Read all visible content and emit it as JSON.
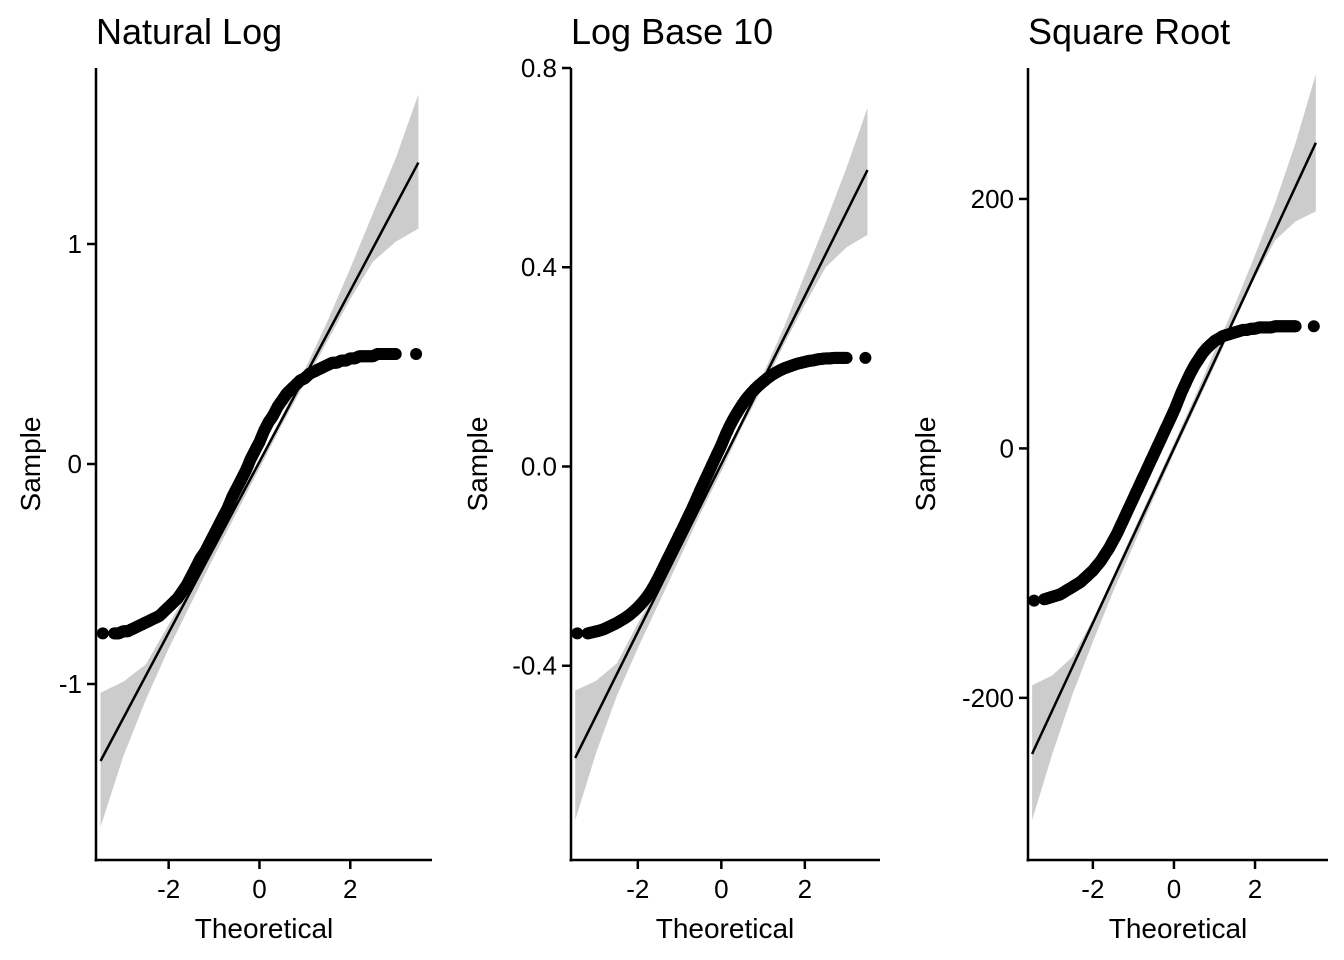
{
  "chart_data": [
    {
      "type": "scatter",
      "subtype": "qq-plot",
      "title": "Natural Log",
      "xlabel": "Theoretical",
      "ylabel": "Sample",
      "xlim": [
        -3.6,
        3.8
      ],
      "ylim": [
        -1.8,
        1.8
      ],
      "x_ticks": [
        -2,
        0,
        2
      ],
      "y_ticks": [
        -1,
        0,
        1
      ],
      "x_tick_labels": [
        "-2",
        "0",
        "2"
      ],
      "y_tick_labels": [
        "-1",
        "0",
        "1"
      ],
      "grid": false,
      "reference_line": {
        "x": [
          -3.5,
          3.5
        ],
        "y": [
          -1.35,
          1.37
        ]
      },
      "confidence_band": {
        "x": [
          -3.5,
          -3.0,
          -2.5,
          -2.0,
          -1.5,
          -1.0,
          -0.5,
          0.0,
          0.5,
          1.0,
          1.5,
          2.0,
          2.5,
          3.0,
          3.5
        ],
        "lower": [
          -1.65,
          -1.33,
          -1.07,
          -0.84,
          -0.63,
          -0.42,
          -0.22,
          -0.02,
          0.18,
          0.37,
          0.56,
          0.75,
          0.92,
          1.01,
          1.07
        ],
        "upper": [
          -1.04,
          -0.99,
          -0.91,
          -0.73,
          -0.55,
          -0.36,
          -0.16,
          0.02,
          0.22,
          0.43,
          0.65,
          0.89,
          1.14,
          1.39,
          1.68
        ]
      },
      "series": [
        {
          "x": [
            -3.45,
            -3.2,
            -3.1,
            -3.0,
            -2.9,
            -2.8,
            -2.7,
            -2.6,
            -2.5,
            -2.4,
            -2.3,
            -2.2,
            -2.1,
            -2.0,
            -1.9,
            -1.8,
            -1.7,
            -1.6,
            -1.5,
            -1.4,
            -1.3,
            -1.2,
            -1.1,
            -1.0,
            -0.9,
            -0.8,
            -0.7,
            -0.6,
            -0.5,
            -0.4,
            -0.3,
            -0.2,
            -0.1,
            0.0,
            0.1,
            0.2,
            0.3,
            0.4,
            0.5,
            0.6,
            0.7,
            0.8,
            0.9,
            1.0,
            1.1,
            1.2,
            1.3,
            1.4,
            1.5,
            1.6,
            1.7,
            1.8,
            1.9,
            2.0,
            2.1,
            2.2,
            2.3,
            2.4,
            2.5,
            2.6,
            2.7,
            2.8,
            2.9,
            3.0,
            3.45
          ],
          "y": [
            -0.77,
            -0.77,
            -0.77,
            -0.76,
            -0.76,
            -0.75,
            -0.74,
            -0.73,
            -0.72,
            -0.71,
            -0.7,
            -0.69,
            -0.67,
            -0.65,
            -0.63,
            -0.61,
            -0.58,
            -0.55,
            -0.51,
            -0.47,
            -0.43,
            -0.4,
            -0.36,
            -0.32,
            -0.28,
            -0.24,
            -0.2,
            -0.15,
            -0.11,
            -0.07,
            -0.03,
            0.02,
            0.06,
            0.1,
            0.15,
            0.19,
            0.22,
            0.26,
            0.29,
            0.32,
            0.34,
            0.36,
            0.38,
            0.39,
            0.41,
            0.42,
            0.43,
            0.44,
            0.45,
            0.46,
            0.46,
            0.47,
            0.47,
            0.48,
            0.48,
            0.49,
            0.49,
            0.49,
            0.49,
            0.5,
            0.5,
            0.5,
            0.5,
            0.5,
            0.5
          ]
        }
      ]
    },
    {
      "type": "scatter",
      "subtype": "qq-plot",
      "title": "Log Base 10",
      "xlabel": "Theoretical",
      "ylabel": "Sample",
      "xlim": [
        -3.6,
        3.8
      ],
      "ylim": [
        -0.79,
        0.8
      ],
      "x_ticks": [
        -2,
        0,
        2
      ],
      "y_ticks": [
        -0.4,
        0.0,
        0.4,
        0.8
      ],
      "x_tick_labels": [
        "-2",
        "0",
        "2"
      ],
      "y_tick_labels": [
        "-0.4",
        "0.0",
        "0.4",
        "0.8"
      ],
      "grid": false,
      "reference_line": {
        "x": [
          -3.5,
          3.5
        ],
        "y": [
          -0.585,
          0.595
        ]
      },
      "confidence_band": {
        "x": [
          -3.5,
          -3.0,
          -2.5,
          -2.0,
          -1.5,
          -1.0,
          -0.5,
          0.0,
          0.5,
          1.0,
          1.5,
          2.0,
          2.5,
          3.0,
          3.5
        ],
        "lower": [
          -0.71,
          -0.575,
          -0.46,
          -0.365,
          -0.275,
          -0.185,
          -0.095,
          -0.01,
          0.08,
          0.16,
          0.245,
          0.325,
          0.4,
          0.44,
          0.465
        ],
        "upper": [
          -0.45,
          -0.43,
          -0.395,
          -0.315,
          -0.24,
          -0.155,
          -0.07,
          0.01,
          0.095,
          0.185,
          0.28,
          0.385,
          0.49,
          0.6,
          0.72
        ]
      },
      "series": [
        {
          "x": [
            -3.45,
            -3.2,
            -3.1,
            -3.0,
            -2.9,
            -2.8,
            -2.7,
            -2.6,
            -2.5,
            -2.4,
            -2.3,
            -2.2,
            -2.1,
            -2.0,
            -1.9,
            -1.8,
            -1.7,
            -1.6,
            -1.5,
            -1.4,
            -1.3,
            -1.2,
            -1.1,
            -1.0,
            -0.9,
            -0.8,
            -0.7,
            -0.6,
            -0.5,
            -0.4,
            -0.3,
            -0.2,
            -0.1,
            0.0,
            0.1,
            0.2,
            0.3,
            0.4,
            0.5,
            0.6,
            0.7,
            0.8,
            0.9,
            1.0,
            1.1,
            1.2,
            1.3,
            1.4,
            1.5,
            1.6,
            1.7,
            1.8,
            1.9,
            2.0,
            2.1,
            2.2,
            2.3,
            2.4,
            2.5,
            2.6,
            2.7,
            2.8,
            2.9,
            3.0,
            3.45
          ],
          "y": [
            -0.335,
            -0.335,
            -0.333,
            -0.331,
            -0.329,
            -0.326,
            -0.322,
            -0.318,
            -0.314,
            -0.309,
            -0.304,
            -0.298,
            -0.291,
            -0.283,
            -0.274,
            -0.264,
            -0.252,
            -0.238,
            -0.222,
            -0.205,
            -0.188,
            -0.171,
            -0.154,
            -0.137,
            -0.12,
            -0.102,
            -0.085,
            -0.066,
            -0.047,
            -0.029,
            -0.011,
            0.007,
            0.025,
            0.043,
            0.063,
            0.081,
            0.097,
            0.111,
            0.124,
            0.136,
            0.146,
            0.155,
            0.163,
            0.17,
            0.177,
            0.183,
            0.188,
            0.193,
            0.197,
            0.2,
            0.203,
            0.206,
            0.208,
            0.21,
            0.212,
            0.213,
            0.215,
            0.216,
            0.217,
            0.217,
            0.218,
            0.218,
            0.218,
            0.218,
            0.218
          ]
        }
      ]
    },
    {
      "type": "scatter",
      "subtype": "qq-plot",
      "title": "Square Root",
      "xlabel": "Theoretical",
      "ylabel": "Sample",
      "xlim": [
        -3.6,
        3.8
      ],
      "ylim": [
        -330,
        305
      ],
      "x_ticks": [
        -2,
        0,
        2
      ],
      "y_ticks": [
        -200,
        0,
        200
      ],
      "x_tick_labels": [
        "-2",
        "0",
        "2"
      ],
      "y_tick_labels": [
        "-200",
        "0",
        "200"
      ],
      "grid": false,
      "reference_line": {
        "x": [
          -3.5,
          3.5
        ],
        "y": [
          -245,
          245
        ]
      },
      "confidence_band": {
        "x": [
          -3.5,
          -3.0,
          -2.5,
          -2.0,
          -1.5,
          -1.0,
          -0.5,
          0.0,
          0.5,
          1.0,
          1.5,
          2.0,
          2.5,
          3.0,
          3.5
        ],
        "lower": [
          -298,
          -245,
          -197,
          -155,
          -115,
          -78,
          -40,
          -4,
          31,
          66,
          102,
          137,
          167,
          182,
          190
        ],
        "upper": [
          -190,
          -182,
          -167,
          -137,
          -102,
          -66,
          -31,
          4,
          40,
          78,
          115,
          155,
          197,
          245,
          300
        ]
      },
      "series": [
        {
          "x": [
            -3.45,
            -3.2,
            -3.1,
            -3.0,
            -2.9,
            -2.8,
            -2.7,
            -2.6,
            -2.5,
            -2.4,
            -2.3,
            -2.2,
            -2.1,
            -2.0,
            -1.9,
            -1.8,
            -1.7,
            -1.6,
            -1.5,
            -1.4,
            -1.3,
            -1.2,
            -1.1,
            -1.0,
            -0.9,
            -0.8,
            -0.7,
            -0.6,
            -0.5,
            -0.4,
            -0.3,
            -0.2,
            -0.1,
            0.0,
            0.1,
            0.2,
            0.3,
            0.4,
            0.5,
            0.6,
            0.7,
            0.8,
            0.9,
            1.0,
            1.1,
            1.2,
            1.3,
            1.4,
            1.5,
            1.6,
            1.7,
            1.8,
            1.9,
            2.0,
            2.1,
            2.2,
            2.3,
            2.4,
            2.5,
            2.6,
            2.7,
            2.8,
            2.9,
            3.0,
            3.45
          ],
          "y": [
            -122,
            -121,
            -120,
            -119,
            -118,
            -117,
            -115,
            -113,
            -111,
            -109,
            -107,
            -104,
            -101,
            -98,
            -94,
            -90,
            -85,
            -80,
            -74,
            -68,
            -61,
            -54,
            -47,
            -40,
            -33,
            -26,
            -19,
            -12,
            -5,
            2,
            9,
            16,
            23,
            30,
            38,
            46,
            53,
            60,
            66,
            71,
            76,
            80,
            83,
            86,
            88,
            90,
            91,
            92,
            93,
            94,
            95,
            95,
            96,
            96,
            97,
            97,
            97,
            97,
            98,
            98,
            98,
            98,
            98,
            98,
            98
          ]
        }
      ]
    }
  ]
}
